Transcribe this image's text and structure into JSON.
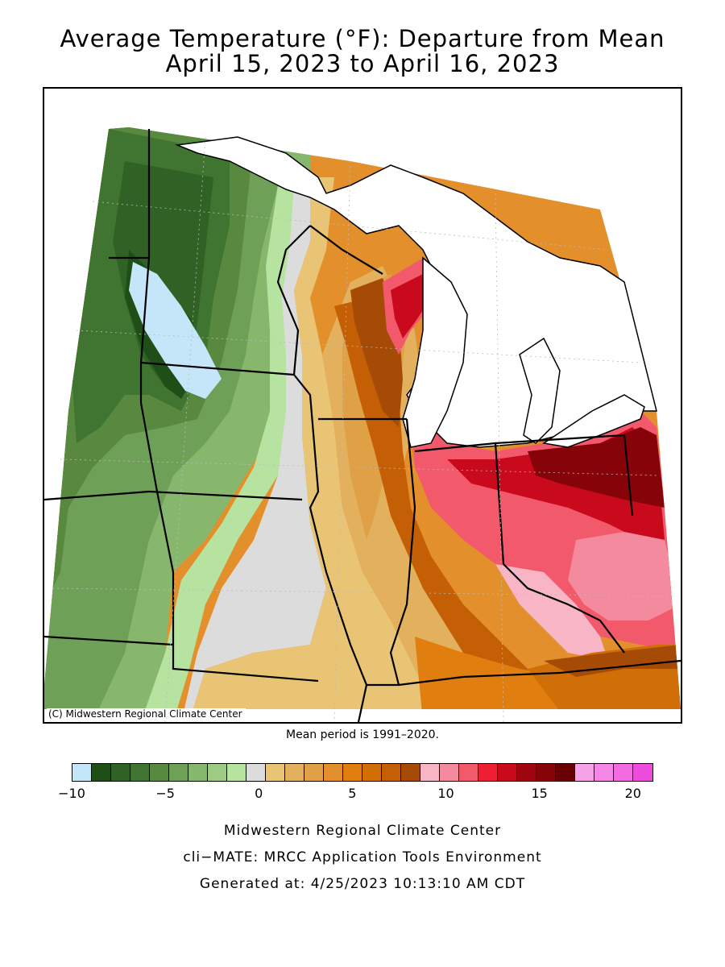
{
  "title": {
    "line1": "Average Temperature (°F): Departure from Mean",
    "line2": "April 15, 2023 to April 16, 2023"
  },
  "map": {
    "copyright": "(C) Midwestern Regional Climate Center",
    "region": "Midwest (MN, IA, MO, WI, IL, IN, MI, OH, KY)"
  },
  "mean_period": "Mean period is 1991–2020.",
  "legend": {
    "ticks": [
      "−10",
      "−5",
      "0",
      "5",
      "10",
      "15",
      "20"
    ],
    "tick_values": [
      -10,
      -5,
      0,
      5,
      10,
      15,
      20
    ],
    "min": -10,
    "max": 21,
    "colors": [
      "#c4e6f8",
      "#1f4f17",
      "#2f6224",
      "#3f7530",
      "#58893f",
      "#6fa057",
      "#87b76d",
      "#9dcb83",
      "#b7e3a0",
      "#dcdcdc",
      "#e8c474",
      "#e3b15e",
      "#e0a046",
      "#e3902c",
      "#e07f10",
      "#d06f08",
      "#c55f06",
      "#a64b06",
      "#f7b5c6",
      "#f48a9e",
      "#f25a6c",
      "#ee1f34",
      "#c80a1c",
      "#a0060f",
      "#86030a",
      "#680005",
      "#f7a3e8",
      "#f588e6",
      "#f26be0",
      "#ee4cdc"
    ]
  },
  "footer": {
    "line1": "Midwestern Regional Climate Center",
    "line2": "cli−MATE: MRCC Application Tools Environment",
    "line3": "Generated at: 4/25/2023 10:13:10 AM CDT"
  }
}
